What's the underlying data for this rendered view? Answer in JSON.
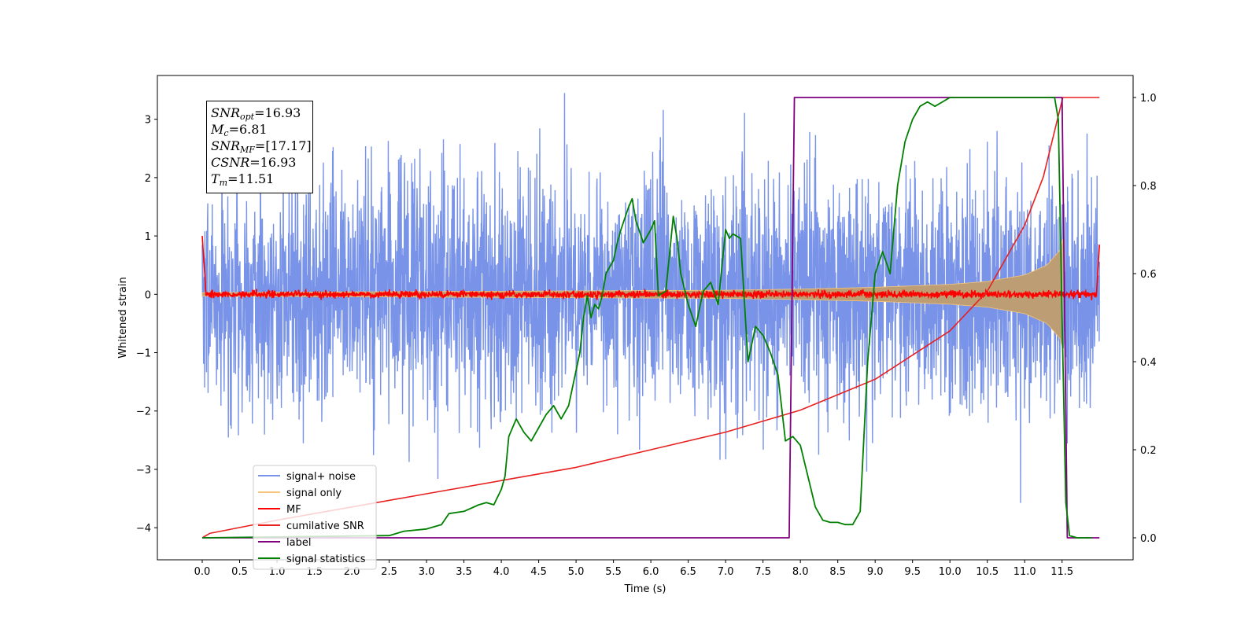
{
  "chart_data": {
    "type": "line",
    "xlabel": "Time (s)",
    "ylabel": "Whitened strain",
    "xlim": [
      -0.6,
      12.45
    ],
    "ylim": [
      -4.55,
      3.75
    ],
    "ylim_right": [
      -0.05,
      1.05
    ],
    "x_ticks": [
      "0.0",
      "0.5",
      "1.0",
      "1.5",
      "2.0",
      "2.5",
      "3.0",
      "3.5",
      "4.0",
      "4.5",
      "5.0",
      "5.5",
      "6.0",
      "6.5",
      "7.0",
      "7.5",
      "8.0",
      "8.5",
      "9.0",
      "9.5",
      "10.0",
      "10.5",
      "11.0",
      "11.5"
    ],
    "y_ticks": [
      "3",
      "2",
      "1",
      "0",
      "−1",
      "−2",
      "−3",
      "−4"
    ],
    "y_ticks_right": [
      "1.0",
      "0.8",
      "0.6",
      "0.4",
      "0.2",
      "0.0"
    ],
    "legend_position": "lower-left",
    "grid": false,
    "annotation": {
      "snr_opt": {
        "main": "SNR",
        "sub": "opt",
        "value": "=16.93"
      },
      "mc": {
        "main": "M",
        "sub": "c",
        "value": "=6.81"
      },
      "snr_mf": {
        "main": "SNR",
        "sub": "MF",
        "value": "=[17.17]"
      },
      "csnr": {
        "main": "CSNR",
        "sub": "",
        "value": "=16.93"
      },
      "tm": {
        "main": "T",
        "sub": "m",
        "value": "=11.51"
      }
    },
    "series": [
      {
        "name": "signal+ noise",
        "color": "#7893e8",
        "axis": "left",
        "description_amplitude": 1.0,
        "duration": [
          0.0,
          12.0
        ]
      },
      {
        "name": "signal only",
        "color": "#f6c67a",
        "axis": "left",
        "envelope": {
          "x": [
            0.0,
            7.0,
            8.0,
            9.0,
            10.0,
            10.5,
            11.0,
            11.3,
            11.5,
            11.51
          ],
          "amplitude": [
            0.03,
            0.07,
            0.09,
            0.12,
            0.17,
            0.22,
            0.33,
            0.5,
            0.8,
            0.95
          ]
        }
      },
      {
        "name": "MF",
        "color": "#ff0000",
        "axis": "left",
        "noise_amplitude": 0.06,
        "edges": {
          "start": 1.0,
          "end": 0.85
        }
      },
      {
        "name": "cumilative SNR",
        "color": "#e82020",
        "axis": "right",
        "x": [
          0.0,
          0.1,
          1.0,
          2.0,
          3.0,
          4.0,
          5.0,
          6.0,
          7.0,
          8.0,
          9.0,
          10.0,
          10.5,
          11.0,
          11.25,
          11.51,
          12.0
        ],
        "y": [
          0.0,
          0.01,
          0.04,
          0.07,
          0.1,
          0.13,
          0.16,
          0.2,
          0.24,
          0.29,
          0.36,
          0.47,
          0.56,
          0.71,
          0.82,
          1.0,
          1.0
        ]
      },
      {
        "name": "label",
        "color": "#800080",
        "axis": "right",
        "x": [
          0.0,
          7.85,
          7.92,
          11.5,
          11.57,
          12.0
        ],
        "y": [
          0.0,
          0.0,
          1.0,
          1.0,
          0.0,
          0.0
        ]
      },
      {
        "name": "signal statistics",
        "color": "#008000",
        "axis": "right",
        "x": [
          0.0,
          2.5,
          2.7,
          3.0,
          3.2,
          3.3,
          3.5,
          3.7,
          3.8,
          3.9,
          4.0,
          4.05,
          4.1,
          4.2,
          4.3,
          4.4,
          4.5,
          4.6,
          4.7,
          4.8,
          4.9,
          5.0,
          5.05,
          5.1,
          5.15,
          5.2,
          5.25,
          5.3,
          5.35,
          5.4,
          5.5,
          5.55,
          5.6,
          5.7,
          5.75,
          5.8,
          5.9,
          6.0,
          6.05,
          6.1,
          6.2,
          6.3,
          6.35,
          6.4,
          6.5,
          6.6,
          6.7,
          6.8,
          6.9,
          7.0,
          7.05,
          7.1,
          7.2,
          7.3,
          7.4,
          7.5,
          7.6,
          7.7,
          7.8,
          7.9,
          8.0,
          8.1,
          8.2,
          8.3,
          8.4,
          8.5,
          8.6,
          8.7,
          8.8,
          8.9,
          9.0,
          9.1,
          9.2,
          9.3,
          9.4,
          9.5,
          9.6,
          9.7,
          9.8,
          9.9,
          10.0,
          10.2,
          10.5,
          11.0,
          11.3,
          11.4,
          11.45,
          11.5,
          11.55,
          11.6,
          11.7,
          11.9
        ],
        "y": [
          0.0,
          0.005,
          0.015,
          0.02,
          0.03,
          0.055,
          0.06,
          0.075,
          0.08,
          0.075,
          0.11,
          0.14,
          0.23,
          0.27,
          0.24,
          0.22,
          0.25,
          0.28,
          0.3,
          0.27,
          0.3,
          0.38,
          0.42,
          0.5,
          0.55,
          0.5,
          0.53,
          0.52,
          0.55,
          0.6,
          0.63,
          0.67,
          0.7,
          0.75,
          0.77,
          0.72,
          0.67,
          0.7,
          0.72,
          0.55,
          0.56,
          0.73,
          0.68,
          0.6,
          0.53,
          0.48,
          0.56,
          0.58,
          0.53,
          0.7,
          0.68,
          0.69,
          0.68,
          0.4,
          0.48,
          0.46,
          0.42,
          0.37,
          0.22,
          0.23,
          0.21,
          0.14,
          0.07,
          0.04,
          0.035,
          0.035,
          0.03,
          0.03,
          0.06,
          0.4,
          0.6,
          0.65,
          0.6,
          0.8,
          0.9,
          0.95,
          0.98,
          0.99,
          0.98,
          0.99,
          1.0,
          1.0,
          1.0,
          1.0,
          1.0,
          1.0,
          0.95,
          0.5,
          0.08,
          0.005,
          0.0,
          0.0
        ]
      }
    ]
  }
}
